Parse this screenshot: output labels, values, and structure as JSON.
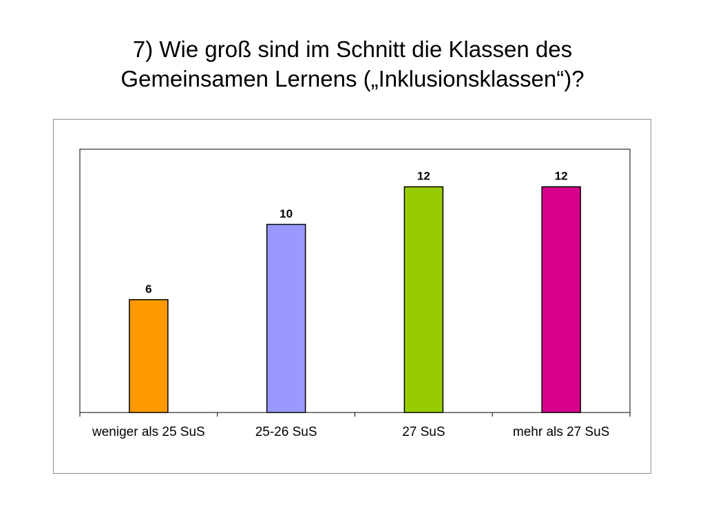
{
  "slide": {
    "title_line1": "7) Wie groß sind im Schnitt die Klassen des",
    "title_line2": "Gemeinsamen Lernens („Inklusionsklassen“)?"
  },
  "chart_data": {
    "type": "bar",
    "title": "",
    "xlabel": "",
    "ylabel": "",
    "categories": [
      "weniger als 25 SuS",
      "25-26 SuS",
      "27 SuS",
      "mehr als 27 SuS"
    ],
    "values": [
      6,
      10,
      12,
      12
    ],
    "data_labels": [
      "6",
      "10",
      "12",
      "12"
    ],
    "colors": [
      "#FF9900",
      "#9999FF",
      "#99CC00",
      "#D6008C"
    ],
    "ylim": [
      0,
      14
    ],
    "grid": false,
    "legend": "none"
  }
}
